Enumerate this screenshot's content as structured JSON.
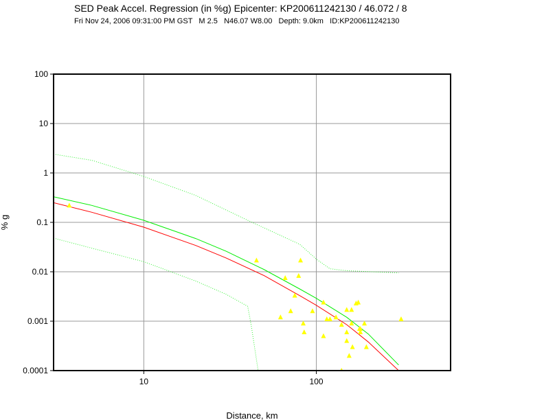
{
  "header": {
    "title": "SED Peak Accel. Regression (in %g) Epicenter: KP200611242130 / 46.072 / 8",
    "subtitle": "Fri Nov 24, 2006 09:31:00 PM GST   M 2.5   N46.07 W8.00   Depth: 9.0km   ID:KP200611242130"
  },
  "chart_data": {
    "type": "scatter",
    "title": "SED Peak Accel. Regression (in %g) Epicenter: KP200611242130 / 46.072 / 8",
    "xlabel": "Distance, km",
    "ylabel": "% g",
    "x_scale": "log",
    "y_scale": "log",
    "xlim": [
      3,
      600
    ],
    "ylim": [
      0.0001,
      100
    ],
    "x_ticks": [
      {
        "value": 10,
        "label": "10"
      },
      {
        "value": 100,
        "label": "100"
      }
    ],
    "y_ticks": [
      {
        "value": 100,
        "label": "100"
      },
      {
        "value": 10,
        "label": "10"
      },
      {
        "value": 1,
        "label": "1"
      },
      {
        "value": 0.1,
        "label": "0.1"
      },
      {
        "value": 0.01,
        "label": "0.01"
      },
      {
        "value": 0.001,
        "label": "0.001"
      },
      {
        "value": 0.0001,
        "label": "0.0001"
      }
    ],
    "grid": true,
    "colors": {
      "points": "#ffff00",
      "median": "#ff0000",
      "fit": "#00ee00",
      "bounds": "#00ee00",
      "grid": "#999999",
      "frame": "#000000"
    },
    "series": [
      {
        "kind": "line",
        "color_key": "fit",
        "x": [
          3,
          5,
          10,
          20,
          30,
          50,
          80,
          100,
          150,
          200,
          300
        ],
        "y": [
          0.33,
          0.22,
          0.11,
          0.047,
          0.026,
          0.011,
          0.0045,
          0.0029,
          0.0012,
          0.00055,
          0.00013
        ]
      },
      {
        "kind": "line",
        "color_key": "median",
        "x": [
          3,
          5,
          10,
          20,
          30,
          50,
          80,
          100,
          150,
          200,
          300
        ],
        "y": [
          0.25,
          0.16,
          0.08,
          0.034,
          0.019,
          0.0083,
          0.0033,
          0.0021,
          0.00085,
          0.00038,
          0.0001
        ]
      },
      {
        "kind": "dotted",
        "color_key": "bounds",
        "x": [
          3,
          5,
          10,
          20,
          40,
          80,
          100,
          120,
          150,
          300
        ],
        "y": [
          2.4,
          1.8,
          0.85,
          0.35,
          0.11,
          0.036,
          0.018,
          0.0115,
          0.0105,
          0.0095
        ]
      },
      {
        "kind": "dotted",
        "color_key": "bounds",
        "x": [
          3,
          5,
          10,
          20,
          30,
          40,
          42,
          46
        ],
        "y": [
          0.048,
          0.03,
          0.016,
          0.0065,
          0.0035,
          0.002,
          0.0008,
          0.0001
        ]
      },
      {
        "kind": "points",
        "color_key": "points",
        "x": [
          3.7,
          45,
          62,
          66,
          71,
          75,
          79,
          81,
          84,
          85,
          95,
          110,
          110,
          115,
          120,
          130,
          140,
          150,
          150,
          150,
          155,
          160,
          160,
          162,
          170,
          175,
          178,
          180,
          180,
          190,
          195,
          310,
          140
        ],
        "y": [
          0.22,
          0.017,
          0.0012,
          0.0075,
          0.0016,
          0.0033,
          0.0083,
          0.017,
          0.0009,
          0.0006,
          0.0016,
          0.0024,
          0.0005,
          0.0011,
          0.0011,
          0.0012,
          0.00085,
          0.0017,
          0.0006,
          0.0004,
          0.0002,
          0.0009,
          0.0017,
          0.0003,
          0.0023,
          0.0024,
          0.0007,
          0.0006,
          0.0007,
          0.0009,
          0.0003,
          0.0011,
          0.0001
        ]
      }
    ]
  }
}
